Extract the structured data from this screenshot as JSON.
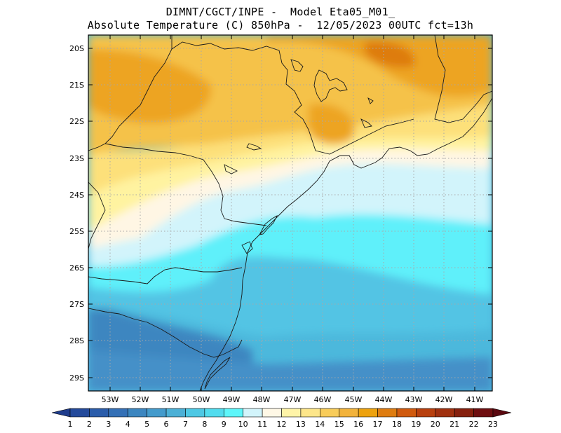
{
  "title": {
    "line1": "DIMNT/CGCT/INPE -  Model Eta05_M01_",
    "line2": "Absolute Temperature (C) 850hPa -  12/05/2023 00UTC fct=13h"
  },
  "map": {
    "lat_labels": [
      "20S",
      "21S",
      "22S",
      "23S",
      "24S",
      "25S",
      "26S",
      "27S",
      "28S",
      "29S"
    ],
    "lon_labels": [
      "53W",
      "52W",
      "51W",
      "50W",
      "49W",
      "48W",
      "47W",
      "46W",
      "45W",
      "44W",
      "43W",
      "42W",
      "41W"
    ]
  },
  "colorbar": {
    "labels": [
      "1",
      "2",
      "3",
      "4",
      "5",
      "6",
      "7",
      "8",
      "9",
      "10",
      "11",
      "12",
      "13",
      "14",
      "15",
      "16",
      "17",
      "18",
      "19",
      "20",
      "21",
      "22",
      "23"
    ],
    "colors": [
      "#1e3c8c",
      "#234a9b",
      "#2a5caa",
      "#3470b6",
      "#3c86c0",
      "#449bcc",
      "#4cb0d6",
      "#4ec8e4",
      "#52dcee",
      "#5ef6fa",
      "#d2f4fb",
      "#fff8e6",
      "#fff4a8",
      "#fde68a",
      "#f8cc5a",
      "#f2b33c",
      "#eda20f",
      "#de7c10",
      "#d05a0e",
      "#b8400e",
      "#a0300f",
      "#86200e",
      "#6e0e10",
      "#5a0810"
    ]
  }
}
